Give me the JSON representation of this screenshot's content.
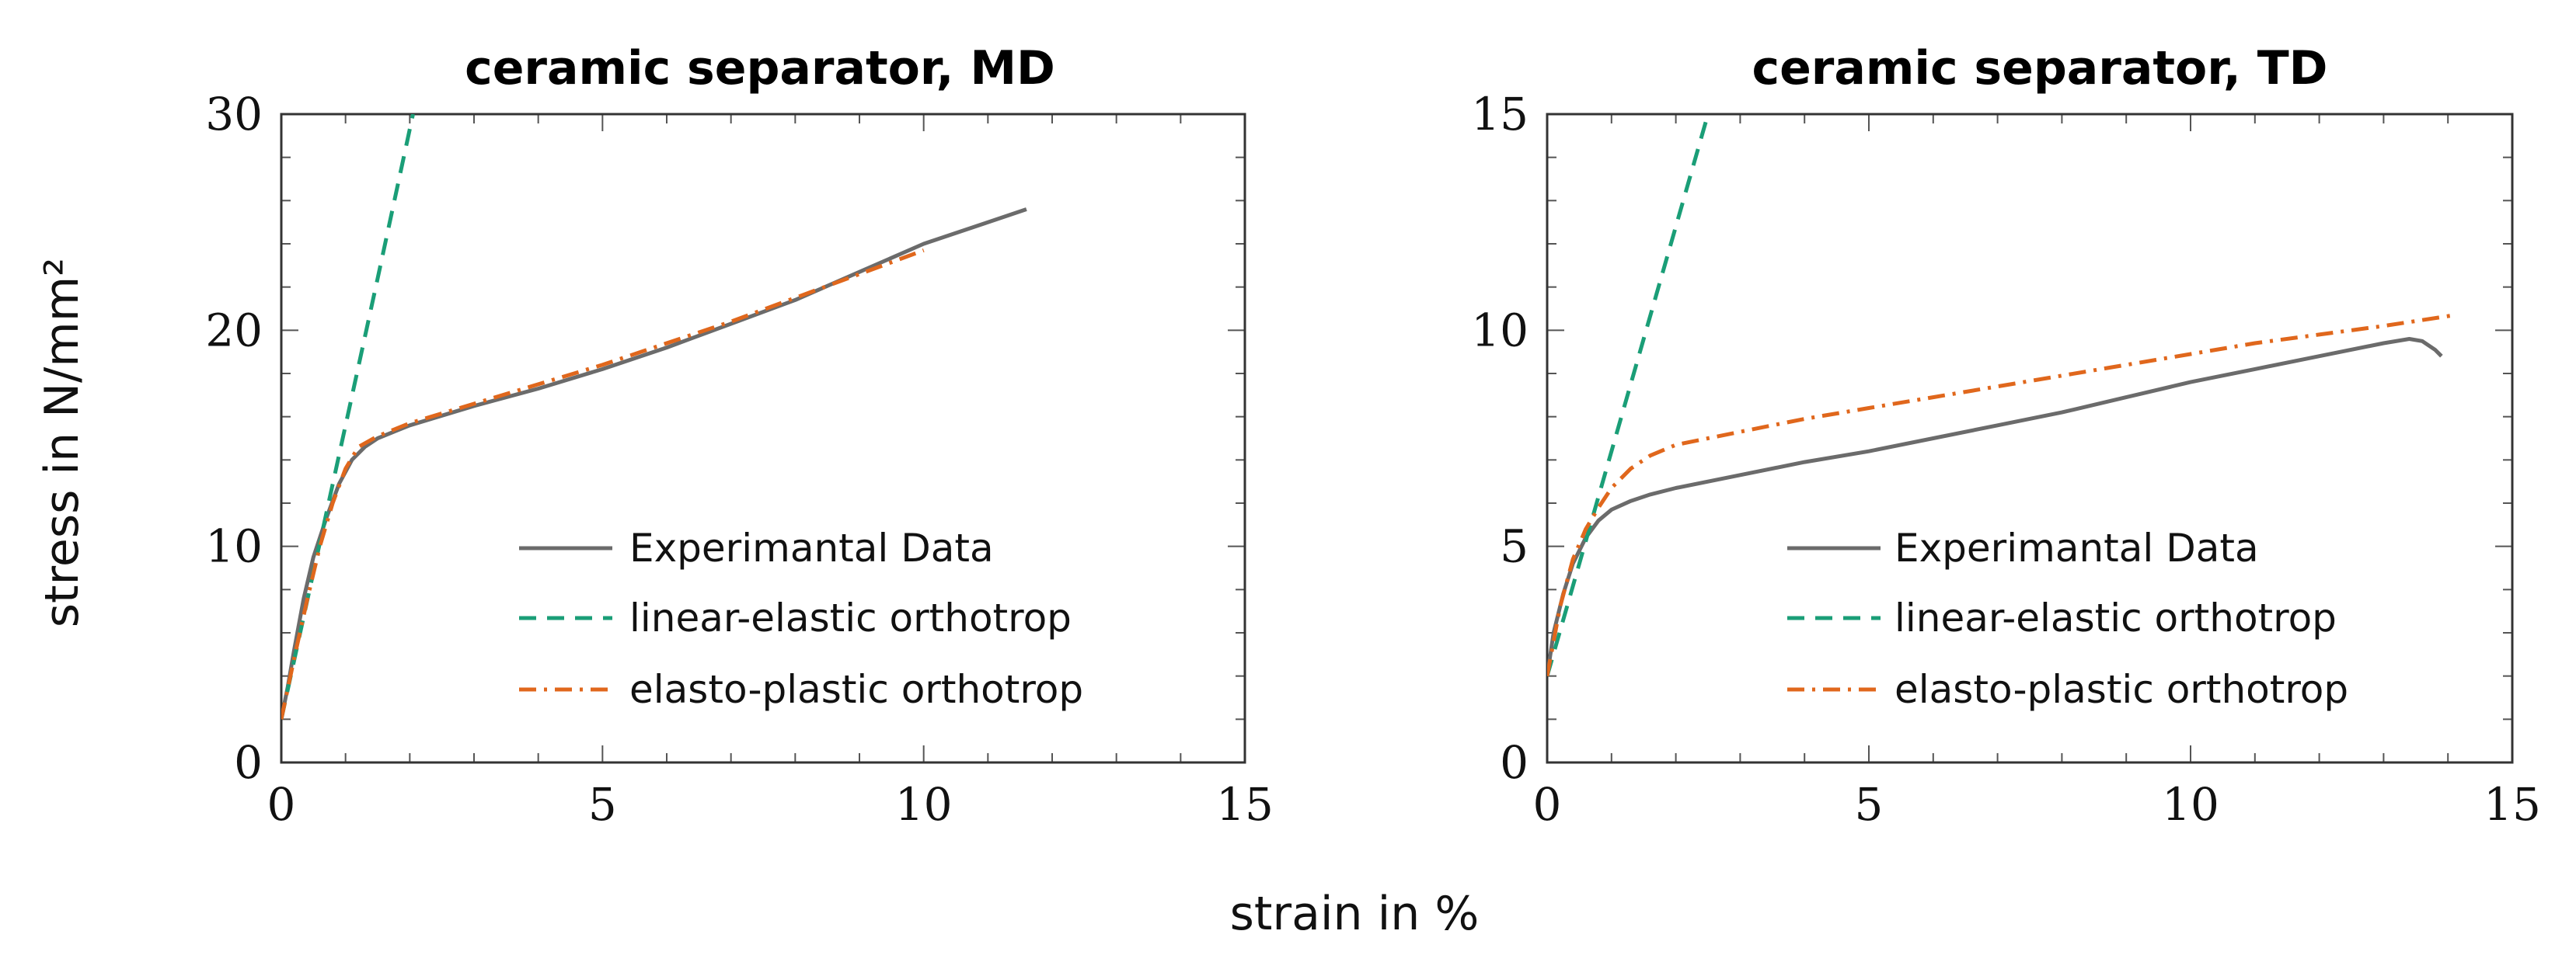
{
  "figure": {
    "shared_xlabel": "strain in %",
    "shared_ylabel": "stress in N/mm²"
  },
  "colors": {
    "experimental": "#6b6b6b",
    "linear_elastic": "#1a9e77",
    "elasto_plastic": "#e0671c"
  },
  "chart_data": [
    {
      "type": "line",
      "title": "ceramic separator, MD",
      "xlabel": "strain in %",
      "ylabel": "stress in N/mm²",
      "xlim": [
        0,
        15
      ],
      "ylim": [
        0,
        30
      ],
      "xticks": [
        0,
        5,
        10,
        15
      ],
      "yticks": [
        0,
        10,
        20,
        30
      ],
      "legend_position": "lower-right",
      "series": [
        {
          "name": "Experimantal Data",
          "style": "solid",
          "x": [
            0,
            0.1,
            0.2,
            0.35,
            0.5,
            0.7,
            0.9,
            1.1,
            1.3,
            1.5,
            2,
            3,
            4,
            5,
            6,
            7,
            8,
            9,
            10,
            11,
            11.6
          ],
          "y": [
            2,
            3.5,
            5.2,
            7.6,
            9.5,
            11.3,
            12.9,
            14.0,
            14.6,
            15.0,
            15.6,
            16.5,
            17.3,
            18.2,
            19.2,
            20.3,
            21.4,
            22.7,
            24.0,
            25.0,
            25.6
          ]
        },
        {
          "name": "linear-elastic orthotrop",
          "style": "dashed",
          "x": [
            0,
            0.5,
            1.0,
            1.5,
            2.05
          ],
          "y": [
            2,
            8.8,
            15.6,
            22.4,
            30
          ]
        },
        {
          "name": "elasto-plastic orthotrop",
          "style": "dashdot",
          "x": [
            0,
            0.2,
            0.4,
            0.6,
            0.8,
            1.0,
            1.2,
            1.5,
            2,
            3,
            4,
            5,
            6,
            7,
            8,
            9,
            10
          ],
          "y": [
            2,
            4.8,
            7.5,
            10.0,
            12.0,
            13.6,
            14.6,
            15.1,
            15.7,
            16.6,
            17.5,
            18.4,
            19.4,
            20.4,
            21.5,
            22.6,
            23.7
          ]
        }
      ]
    },
    {
      "type": "line",
      "title": "ceramic separator, TD",
      "xlabel": "strain in %",
      "ylabel": "stress in N/mm²",
      "xlim": [
        0,
        15
      ],
      "ylim": [
        0,
        15
      ],
      "xticks": [
        0,
        5,
        10,
        15
      ],
      "yticks": [
        0,
        5,
        10,
        15
      ],
      "legend_position": "lower-right",
      "series": [
        {
          "name": "Experimantal Data",
          "style": "solid",
          "x": [
            0,
            0.1,
            0.25,
            0.4,
            0.6,
            0.8,
            1.0,
            1.3,
            1.6,
            2,
            3,
            4,
            5,
            6,
            7,
            8,
            9,
            10,
            11,
            12,
            13,
            13.4,
            13.6,
            13.8,
            13.9
          ],
          "y": [
            2.0,
            3.0,
            3.9,
            4.6,
            5.2,
            5.6,
            5.85,
            6.05,
            6.2,
            6.35,
            6.65,
            6.95,
            7.2,
            7.5,
            7.8,
            8.1,
            8.45,
            8.8,
            9.1,
            9.4,
            9.7,
            9.8,
            9.75,
            9.55,
            9.4
          ]
        },
        {
          "name": "linear-elastic orthotrop",
          "style": "dashed",
          "x": [
            0,
            0.5,
            1.0,
            1.5,
            2.5
          ],
          "y": [
            2,
            4.6,
            7.2,
            9.8,
            15
          ]
        },
        {
          "name": "elasto-plastic orthotrop",
          "style": "dashdot",
          "x": [
            0,
            0.2,
            0.4,
            0.6,
            0.8,
            1.0,
            1.3,
            1.6,
            2,
            3,
            4,
            5,
            6,
            7,
            8,
            9,
            10,
            11,
            12,
            13,
            14.1
          ],
          "y": [
            2,
            3.6,
            4.7,
            5.4,
            5.9,
            6.35,
            6.8,
            7.1,
            7.35,
            7.65,
            7.95,
            8.2,
            8.45,
            8.7,
            8.95,
            9.2,
            9.45,
            9.7,
            9.9,
            10.1,
            10.35
          ]
        }
      ]
    }
  ]
}
